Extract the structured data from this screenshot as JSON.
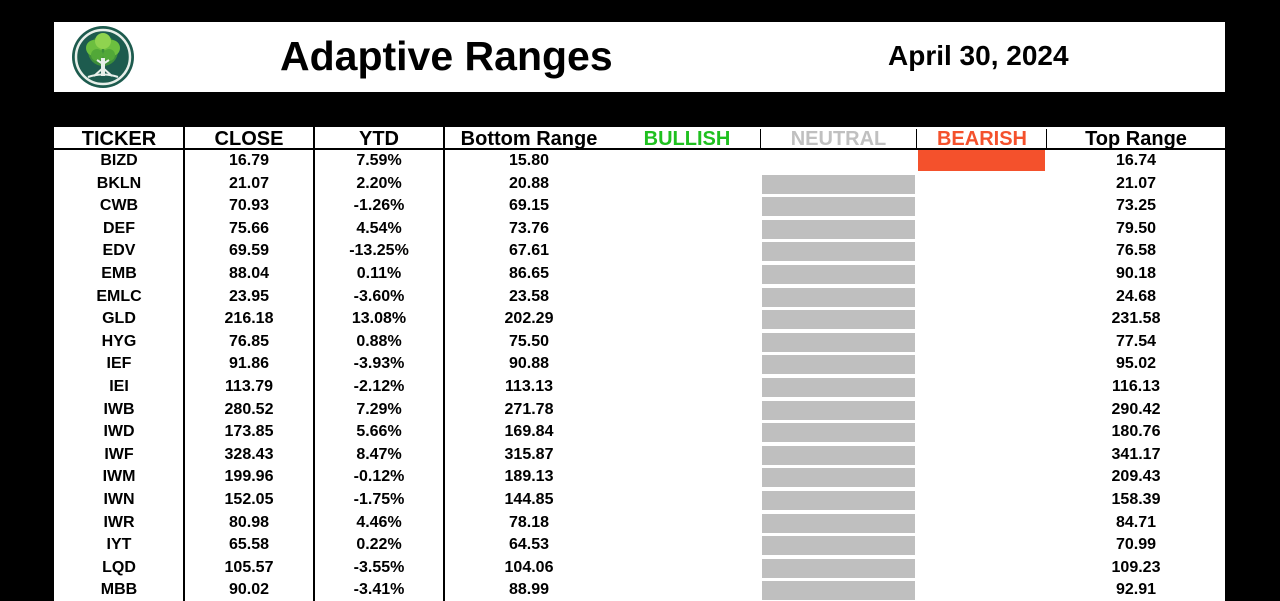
{
  "header": {
    "title": "Adaptive Ranges",
    "date": "April 30, 2024",
    "logo_icon": "tree-logo-icon"
  },
  "columns": {
    "ticker": "TICKER",
    "close": "CLOSE",
    "ytd": "YTD",
    "bottom": "Bottom Range",
    "bullish": "BULLISH",
    "neutral": "NEUTRAL",
    "bearish": "BEARISH",
    "top": "Top Range"
  },
  "colors": {
    "bullish": "#1fc01f",
    "neutral": "#c0c0c0",
    "bearish": "#f4512c",
    "neutral_bar": "#bfbfbf",
    "bearish_bar": "#f4512c"
  },
  "rows": [
    {
      "ticker": "BIZD",
      "close": "16.79",
      "ytd": "7.59%",
      "bottom": "15.80",
      "signal": "bearish",
      "top": "16.74"
    },
    {
      "ticker": "BKLN",
      "close": "21.07",
      "ytd": "2.20%",
      "bottom": "20.88",
      "signal": "neutral",
      "top": "21.07"
    },
    {
      "ticker": "CWB",
      "close": "70.93",
      "ytd": "-1.26%",
      "bottom": "69.15",
      "signal": "neutral",
      "top": "73.25"
    },
    {
      "ticker": "DEF",
      "close": "75.66",
      "ytd": "4.54%",
      "bottom": "73.76",
      "signal": "neutral",
      "top": "79.50"
    },
    {
      "ticker": "EDV",
      "close": "69.59",
      "ytd": "-13.25%",
      "bottom": "67.61",
      "signal": "neutral",
      "top": "76.58"
    },
    {
      "ticker": "EMB",
      "close": "88.04",
      "ytd": "0.11%",
      "bottom": "86.65",
      "signal": "neutral",
      "top": "90.18"
    },
    {
      "ticker": "EMLC",
      "close": "23.95",
      "ytd": "-3.60%",
      "bottom": "23.58",
      "signal": "neutral",
      "top": "24.68"
    },
    {
      "ticker": "GLD",
      "close": "216.18",
      "ytd": "13.08%",
      "bottom": "202.29",
      "signal": "neutral",
      "top": "231.58"
    },
    {
      "ticker": "HYG",
      "close": "76.85",
      "ytd": "0.88%",
      "bottom": "75.50",
      "signal": "neutral",
      "top": "77.54"
    },
    {
      "ticker": "IEF",
      "close": "91.86",
      "ytd": "-3.93%",
      "bottom": "90.88",
      "signal": "neutral",
      "top": "95.02"
    },
    {
      "ticker": "IEI",
      "close": "113.79",
      "ytd": "-2.12%",
      "bottom": "113.13",
      "signal": "neutral",
      "top": "116.13"
    },
    {
      "ticker": "IWB",
      "close": "280.52",
      "ytd": "7.29%",
      "bottom": "271.78",
      "signal": "neutral",
      "top": "290.42"
    },
    {
      "ticker": "IWD",
      "close": "173.85",
      "ytd": "5.66%",
      "bottom": "169.84",
      "signal": "neutral",
      "top": "180.76"
    },
    {
      "ticker": "IWF",
      "close": "328.43",
      "ytd": "8.47%",
      "bottom": "315.87",
      "signal": "neutral",
      "top": "341.17"
    },
    {
      "ticker": "IWM",
      "close": "199.96",
      "ytd": "-0.12%",
      "bottom": "189.13",
      "signal": "neutral",
      "top": "209.43"
    },
    {
      "ticker": "IWN",
      "close": "152.05",
      "ytd": "-1.75%",
      "bottom": "144.85",
      "signal": "neutral",
      "top": "158.39"
    },
    {
      "ticker": "IWR",
      "close": "80.98",
      "ytd": "4.46%",
      "bottom": "78.18",
      "signal": "neutral",
      "top": "84.71"
    },
    {
      "ticker": "IYT",
      "close": "65.58",
      "ytd": "0.22%",
      "bottom": "64.53",
      "signal": "neutral",
      "top": "70.99"
    },
    {
      "ticker": "LQD",
      "close": "105.57",
      "ytd": "-3.55%",
      "bottom": "104.06",
      "signal": "neutral",
      "top": "109.23"
    },
    {
      "ticker": "MBB",
      "close": "90.02",
      "ytd": "-3.41%",
      "bottom": "88.99",
      "signal": "neutral",
      "top": "92.91"
    }
  ]
}
